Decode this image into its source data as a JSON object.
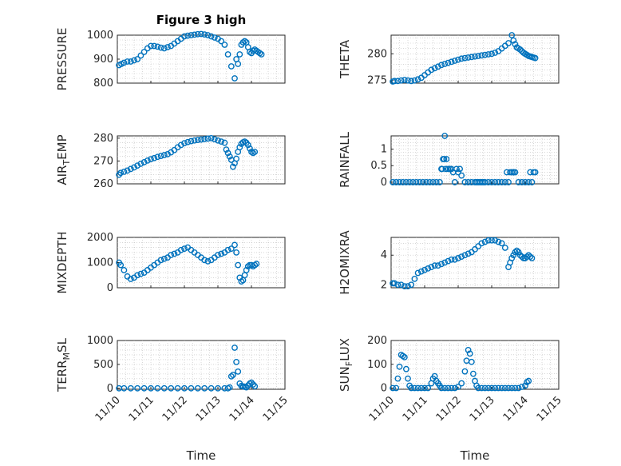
{
  "figure": {
    "title": "Figure 3 high",
    "marker_color": "#0072bd",
    "grid": true,
    "x_ticks": [
      "11/10",
      "11/11",
      "11/12",
      "11/13",
      "11/14",
      "11/15"
    ],
    "x_label": "Time"
  },
  "chart_data": [
    {
      "id": "pressure",
      "type": "scatter",
      "ylabel": "PRESSURE",
      "ylim": [
        800,
        1000
      ],
      "yticks": [
        "800",
        "900",
        "1000"
      ],
      "ytick_values": [
        800,
        900,
        1000
      ],
      "x": [
        0.05,
        0.12,
        0.2,
        0.3,
        0.4,
        0.5,
        0.6,
        0.7,
        0.8,
        0.9,
        1.0,
        1.1,
        1.2,
        1.3,
        1.4,
        1.5,
        1.6,
        1.7,
        1.8,
        1.9,
        2.0,
        2.1,
        2.2,
        2.3,
        2.4,
        2.5,
        2.6,
        2.7,
        2.8,
        2.9,
        3.0,
        3.1,
        3.2,
        3.3,
        3.4,
        3.5,
        3.55,
        3.6,
        3.65,
        3.7,
        3.75,
        3.8,
        3.85,
        3.9,
        3.95,
        4.0,
        4.05,
        4.1,
        4.15,
        4.2,
        4.25,
        4.3
      ],
      "y": [
        875,
        880,
        885,
        890,
        890,
        895,
        900,
        915,
        930,
        945,
        955,
        955,
        952,
        948,
        945,
        950,
        955,
        965,
        975,
        985,
        995,
        998,
        1000,
        1002,
        1004,
        1005,
        1003,
        1000,
        995,
        990,
        985,
        975,
        960,
        920,
        870,
        820,
        900,
        880,
        920,
        960,
        970,
        975,
        970,
        950,
        930,
        925,
        935,
        940,
        935,
        930,
        925,
        920
      ]
    },
    {
      "id": "theta",
      "type": "scatter",
      "ylabel": "THETA",
      "ylim": [
        274.5,
        283.5
      ],
      "yticks": [
        "275",
        "280"
      ],
      "ytick_values": [
        275,
        280
      ],
      "x": [
        0.05,
        0.1,
        0.2,
        0.3,
        0.4,
        0.5,
        0.6,
        0.7,
        0.8,
        0.9,
        1.0,
        1.1,
        1.2,
        1.3,
        1.4,
        1.5,
        1.6,
        1.7,
        1.8,
        1.9,
        2.0,
        2.1,
        2.2,
        2.3,
        2.4,
        2.5,
        2.6,
        2.7,
        2.8,
        2.9,
        3.0,
        3.1,
        3.2,
        3.3,
        3.4,
        3.5,
        3.6,
        3.65,
        3.7,
        3.75,
        3.8,
        3.85,
        3.9,
        3.95,
        4.0,
        4.05,
        4.1,
        4.15,
        4.2,
        4.25,
        4.3
      ],
      "y": [
        274.8,
        274.9,
        274.9,
        275.0,
        275.1,
        275.0,
        274.9,
        275.0,
        275.2,
        275.5,
        276.0,
        276.5,
        277.0,
        277.3,
        277.6,
        277.9,
        278.1,
        278.3,
        278.5,
        278.7,
        278.9,
        279.1,
        279.2,
        279.3,
        279.4,
        279.5,
        279.6,
        279.7,
        279.8,
        279.9,
        280.0,
        280.2,
        280.5,
        281.0,
        281.5,
        282.0,
        283.5,
        282.5,
        281.8,
        281.2,
        281.0,
        280.8,
        280.5,
        280.2,
        280.0,
        279.8,
        279.6,
        279.5,
        279.4,
        279.3,
        279.2
      ]
    },
    {
      "id": "air_temp",
      "type": "scatter",
      "ylabel": "AIR",
      "ylabel_sub": "T",
      "ylabel_rest": "EMP",
      "ylim": [
        260,
        281
      ],
      "yticks": [
        "260",
        "270",
        "280"
      ],
      "ytick_values": [
        260,
        270,
        280
      ],
      "x": [
        0.05,
        0.1,
        0.2,
        0.3,
        0.4,
        0.5,
        0.6,
        0.7,
        0.8,
        0.9,
        1.0,
        1.1,
        1.2,
        1.3,
        1.4,
        1.5,
        1.6,
        1.7,
        1.8,
        1.9,
        2.0,
        2.1,
        2.2,
        2.3,
        2.4,
        2.5,
        2.6,
        2.7,
        2.8,
        2.9,
        3.0,
        3.1,
        3.2,
        3.25,
        3.3,
        3.35,
        3.4,
        3.45,
        3.5,
        3.55,
        3.6,
        3.65,
        3.7,
        3.75,
        3.8,
        3.85,
        3.9,
        3.95,
        4.0,
        4.05,
        4.1
      ],
      "y": [
        264.0,
        264.8,
        265.3,
        265.8,
        266.5,
        267.2,
        268.0,
        268.8,
        269.5,
        270.2,
        270.8,
        271.3,
        271.8,
        272.2,
        272.6,
        273.0,
        273.8,
        274.8,
        276.0,
        277.0,
        277.8,
        278.3,
        278.7,
        279.0,
        279.2,
        279.4,
        279.6,
        279.8,
        280.0,
        279.5,
        279.0,
        278.5,
        278.0,
        275.0,
        273.5,
        272.0,
        270.5,
        267.5,
        269.0,
        271.0,
        274.0,
        276.0,
        277.5,
        278.2,
        278.5,
        278.0,
        277.0,
        275.5,
        274.0,
        273.5,
        274.0
      ]
    },
    {
      "id": "rainfall",
      "type": "scatter",
      "ylabel": "RAINFALL",
      "ylim": [
        -0.05,
        1.4
      ],
      "yticks": [
        "0",
        "0.5",
        "1"
      ],
      "ytick_values": [
        0,
        0.5,
        1
      ],
      "x": [
        0.05,
        0.15,
        0.25,
        0.35,
        0.45,
        0.55,
        0.65,
        0.75,
        0.85,
        0.95,
        1.05,
        1.15,
        1.25,
        1.35,
        1.45,
        1.5,
        1.55,
        1.6,
        1.65,
        1.7,
        1.75,
        1.8,
        1.85,
        1.9,
        1.95,
        2.0,
        2.05,
        2.1,
        2.2,
        2.3,
        2.4,
        2.5,
        2.6,
        2.7,
        2.8,
        2.9,
        3.0,
        3.1,
        3.2,
        3.3,
        3.4,
        3.5,
        3.6,
        3.65,
        3.7,
        3.8,
        3.9,
        4.0,
        4.1,
        4.2,
        4.3,
        1.52,
        1.58,
        1.63,
        2.55,
        2.65,
        2.75,
        3.45,
        3.55,
        3.65,
        4.15,
        4.25
      ],
      "y": [
        0,
        0,
        0,
        0,
        0,
        0,
        0,
        0,
        0,
        0,
        0,
        0,
        0,
        0,
        0,
        0.4,
        0.7,
        1.4,
        0.7,
        0.4,
        0.4,
        0.4,
        0.3,
        0,
        0.4,
        0.3,
        0.4,
        0.2,
        0,
        0,
        0,
        0,
        0,
        0,
        0,
        0,
        0,
        0,
        0,
        0,
        0,
        0,
        0.3,
        0.3,
        0.3,
        0,
        0,
        0,
        0,
        0,
        0.3,
        0.4,
        0.7,
        0.4,
        0,
        0,
        0,
        0.3,
        0.3,
        0.3,
        0.3,
        0.3
      ]
    },
    {
      "id": "mixdepth",
      "type": "scatter",
      "ylabel": "MIXDEPTH",
      "ylim": [
        0,
        2000
      ],
      "yticks": [
        "0",
        "1000",
        "2000"
      ],
      "ytick_values": [
        0,
        1000,
        2000
      ],
      "x": [
        0.05,
        0.1,
        0.2,
        0.3,
        0.4,
        0.5,
        0.6,
        0.7,
        0.8,
        0.9,
        1.0,
        1.1,
        1.2,
        1.3,
        1.4,
        1.5,
        1.6,
        1.7,
        1.8,
        1.9,
        2.0,
        2.1,
        2.2,
        2.3,
        2.4,
        2.5,
        2.6,
        2.7,
        2.8,
        2.9,
        3.0,
        3.1,
        3.2,
        3.3,
        3.4,
        3.5,
        3.55,
        3.6,
        3.65,
        3.7,
        3.75,
        3.8,
        3.85,
        3.9,
        3.95,
        4.0,
        4.05,
        4.1,
        4.15
      ],
      "y": [
        1000,
        900,
        700,
        450,
        350,
        400,
        500,
        550,
        600,
        700,
        800,
        900,
        1000,
        1100,
        1150,
        1200,
        1300,
        1350,
        1400,
        1500,
        1550,
        1600,
        1500,
        1400,
        1300,
        1200,
        1100,
        1050,
        1100,
        1200,
        1300,
        1350,
        1400,
        1500,
        1550,
        1700,
        1400,
        900,
        400,
        250,
        300,
        500,
        700,
        850,
        900,
        900,
        850,
        900,
        950
      ]
    },
    {
      "id": "h2omixra",
      "type": "scatter",
      "ylabel": "H2OMIXRA",
      "ylim": [
        1.8,
        5.2
      ],
      "yticks": [
        "2",
        "4"
      ],
      "ytick_values": [
        2,
        4
      ],
      "x": [
        0.05,
        0.1,
        0.2,
        0.3,
        0.4,
        0.5,
        0.6,
        0.7,
        0.8,
        0.9,
        1.0,
        1.1,
        1.2,
        1.3,
        1.4,
        1.5,
        1.6,
        1.7,
        1.8,
        1.9,
        2.0,
        2.1,
        2.2,
        2.3,
        2.4,
        2.5,
        2.6,
        2.7,
        2.8,
        2.9,
        3.0,
        3.1,
        3.2,
        3.3,
        3.4,
        3.5,
        3.55,
        3.6,
        3.65,
        3.7,
        3.75,
        3.8,
        3.85,
        3.9,
        3.95,
        4.0,
        4.05,
        4.1,
        4.15,
        4.2
      ],
      "y": [
        2.1,
        2.1,
        2.0,
        2.0,
        1.9,
        1.9,
        2.0,
        2.4,
        2.8,
        2.9,
        3.0,
        3.1,
        3.2,
        3.3,
        3.3,
        3.4,
        3.5,
        3.6,
        3.7,
        3.7,
        3.8,
        3.9,
        4.0,
        4.1,
        4.2,
        4.4,
        4.6,
        4.8,
        4.9,
        5.0,
        5.0,
        5.0,
        4.9,
        4.8,
        4.5,
        3.2,
        3.5,
        3.8,
        4.0,
        4.2,
        4.3,
        4.2,
        4.0,
        3.9,
        3.8,
        3.8,
        3.9,
        4.0,
        3.9,
        3.8
      ]
    },
    {
      "id": "terr_msl",
      "type": "scatter",
      "ylabel": "TERR",
      "ylabel_sub": "M",
      "ylabel_rest": "SL",
      "ylim": [
        -20,
        1000
      ],
      "yticks": [
        "0",
        "500",
        "1000"
      ],
      "ytick_values": [
        0,
        500,
        1000
      ],
      "x": [
        0.05,
        0.2,
        0.4,
        0.6,
        0.8,
        1.0,
        1.2,
        1.4,
        1.6,
        1.8,
        2.0,
        2.2,
        2.4,
        2.6,
        2.8,
        3.0,
        3.2,
        3.3,
        3.35,
        3.4,
        3.45,
        3.5,
        3.55,
        3.6,
        3.65,
        3.7,
        3.75,
        3.8,
        3.85,
        3.9,
        3.95,
        4.0,
        4.05,
        4.1
      ],
      "y": [
        0,
        0,
        0,
        0,
        0,
        0,
        0,
        0,
        0,
        0,
        0,
        0,
        0,
        0,
        0,
        0,
        0,
        0,
        20,
        250,
        280,
        850,
        550,
        350,
        100,
        50,
        40,
        30,
        20,
        60,
        100,
        120,
        80,
        40
      ]
    },
    {
      "id": "sun_flux",
      "type": "scatter",
      "ylabel": "SUN",
      "ylabel_sub": "F",
      "ylabel_rest": "LUX",
      "ylim": [
        -5,
        200
      ],
      "yticks": [
        "0",
        "100",
        "200"
      ],
      "ytick_values": [
        0,
        100,
        200
      ],
      "x": [
        0.05,
        0.15,
        0.2,
        0.25,
        0.3,
        0.35,
        0.4,
        0.45,
        0.5,
        0.55,
        0.6,
        0.7,
        0.8,
        0.9,
        1.0,
        1.1,
        1.2,
        1.25,
        1.3,
        1.35,
        1.4,
        1.45,
        1.5,
        1.6,
        1.7,
        1.8,
        1.9,
        2.0,
        2.1,
        2.2,
        2.25,
        2.3,
        2.35,
        2.4,
        2.45,
        2.5,
        2.55,
        2.6,
        2.7,
        2.8,
        2.9,
        3.0,
        3.1,
        3.2,
        3.3,
        3.4,
        3.5,
        3.6,
        3.7,
        3.8,
        3.9,
        4.0,
        4.05,
        4.1
      ],
      "y": [
        0,
        0,
        40,
        90,
        140,
        135,
        130,
        80,
        40,
        10,
        0,
        0,
        0,
        0,
        0,
        0,
        20,
        40,
        50,
        30,
        20,
        10,
        0,
        0,
        0,
        0,
        0,
        5,
        20,
        70,
        115,
        160,
        145,
        110,
        60,
        30,
        10,
        0,
        0,
        0,
        0,
        0,
        0,
        0,
        0,
        0,
        0,
        0,
        0,
        0,
        5,
        10,
        25,
        30
      ]
    }
  ]
}
